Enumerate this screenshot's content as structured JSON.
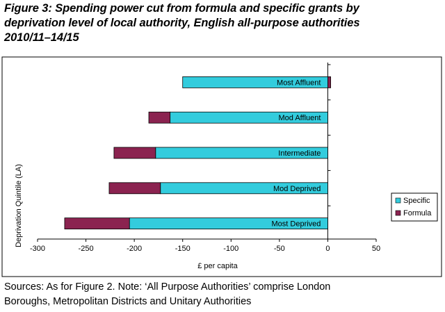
{
  "figure": {
    "title_lines": [
      "Figure 3: Spending power cut from formula and specific grants by",
      "deprivation level of local authority, English all-purpose authorities",
      "2010/11–14/15"
    ],
    "source_lines": [
      "Sources: As for Figure 2. Note: ‘All Purpose Authorities’ comprise London",
      "Boroughs, Metropolitan Districts and Unitary Authorities"
    ]
  },
  "chart_data": {
    "type": "bar",
    "orientation": "horizontal",
    "stacked": true,
    "title": "",
    "xlabel": "£ per capita",
    "ylabel": "Deprivation Quintile (LA)",
    "xlim": [
      -300,
      50
    ],
    "xticks": [
      -300,
      -250,
      -200,
      -150,
      -100,
      -50,
      0,
      50
    ],
    "grid": false,
    "legend_position": "right",
    "categories": [
      "Most Affluent",
      "Mod Affluent",
      "Intermediate",
      "Mod Deprived",
      "Most Deprived"
    ],
    "series": [
      {
        "name": "Specific",
        "color": "#33ccdd",
        "values": [
          -150,
          -163,
          -178,
          -173,
          -205
        ]
      },
      {
        "name": "Formula",
        "color": "#8b2350",
        "values": [
          3,
          -22,
          -43,
          -53,
          -67
        ]
      }
    ]
  }
}
